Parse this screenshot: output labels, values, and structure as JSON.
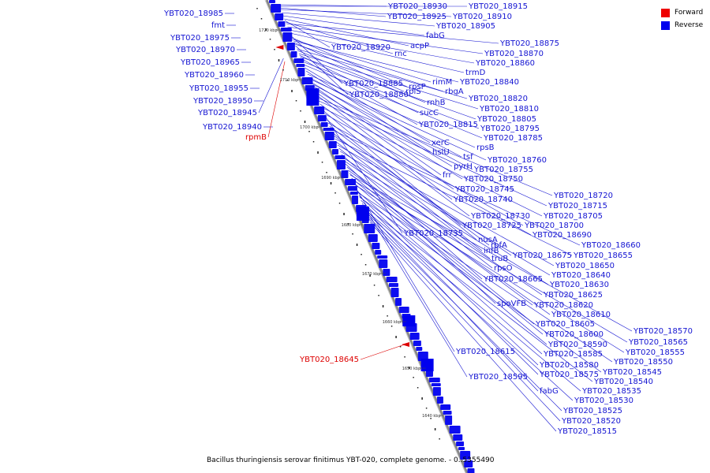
{
  "caption": "Bacillus thuringiensis serovar finitimus YBT-020, complete genome. - 0..5355490",
  "legend": [
    {
      "label": "Forward",
      "color": "#ee0000"
    },
    {
      "label": "Reverse",
      "color": "#0000ee"
    }
  ],
  "scale_ticks": [
    "1720 kbp",
    "1710 kbp",
    "1700 kbp",
    "1690 kbp",
    "1680 kbp",
    "1670 kbp",
    "1660 kbp",
    "1650 kbp",
    "1640 kbp"
  ],
  "forward_labels": [
    "YBT020_18945",
    "rpmB",
    "YBT020_18645"
  ],
  "reverse_labels": [
    "YBT020_18985",
    "fmt",
    "YBT020_18975",
    "YBT020_18970",
    "YBT020_18965",
    "YBT020_18960",
    "YBT020_18955",
    "YBT020_18950",
    "YBT020_18940",
    "YBT020_18930",
    "YBT020_18915",
    "YBT020_18925",
    "YBT020_18910",
    "YBT020_18905",
    "fabG",
    "acpP",
    "YBT020_18920",
    "rnc",
    "YBT020_18875",
    "YBT020_18870",
    "YBT020_18860",
    "trmD",
    "YBT020_18885",
    "rpsP",
    "rimM",
    "YBT020_18840",
    "rplS",
    "rbgA",
    "YBT020_18880",
    "YBT020_18820",
    "rnhB",
    "YBT020_18810",
    "sucC",
    "YBT020_18805",
    "YBT020_18815",
    "YBT020_18795",
    "YBT020_18785",
    "xerC",
    "hslU",
    "rpsB",
    "tsf",
    "YBT020_18760",
    "pyrH",
    "YBT020_18755",
    "frr",
    "YBT020_18750",
    "YBT020_18745",
    "YBT020_18740",
    "YBT020_18720",
    "YBT020_18715",
    "YBT020_18730",
    "YBT020_18705",
    "YBT020_18725",
    "YBT020_18700",
    "YBT020_18735",
    "nusA",
    "YBT020_18690",
    "rbfA",
    "YBT020_18660",
    "infB",
    "YBT020_18675",
    "YBT020_18655",
    "truB",
    "YBT020_18650",
    "rpsO",
    "YBT020_18640",
    "YBT020_18665",
    "YBT020_18630",
    "YBT020_18625",
    "spoVFB",
    "YBT020_18620",
    "YBT020_18610",
    "YBT020_18605",
    "YBT020_18570",
    "YBT020_18600",
    "YBT020_18565",
    "YBT020_18590",
    "YBT020_18555",
    "YBT020_18615",
    "YBT020_18585",
    "YBT020_18550",
    "YBT020_18580",
    "YBT020_18545",
    "YBT020_18575",
    "YBT020_18595",
    "YBT020_18540",
    "fabG",
    "YBT020_18535",
    "YBT020_18530",
    "YBT020_18525",
    "YBT020_18520",
    "YBT020_18515"
  ]
}
